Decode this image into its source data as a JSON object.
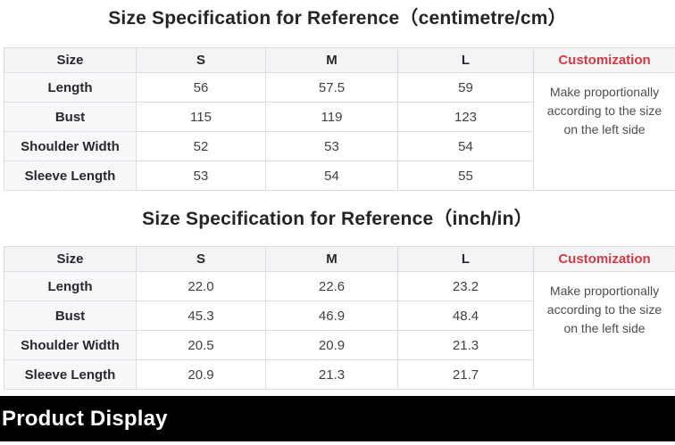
{
  "colors": {
    "customization_red": "#d23b41",
    "header_bg": "#f3f4f6",
    "label_column_bg": "#f7f8f9",
    "table_border": "#dcdde0",
    "section_bar_bg": "#000000",
    "section_bar_text": "#ffffff"
  },
  "tables": [
    {
      "title": "Size Specification for Reference（centimetre/cm）",
      "unit": "centimetre/cm",
      "columns": [
        "Size",
        "S",
        "M",
        "L",
        "Customization"
      ],
      "rows": [
        {
          "label": "Length",
          "values": [
            "56",
            "57.5",
            "59"
          ]
        },
        {
          "label": "Bust",
          "values": [
            "115",
            "119",
            "123"
          ]
        },
        {
          "label": "Shoulder Width",
          "values": [
            "52",
            "53",
            "54"
          ]
        },
        {
          "label": "Sleeve Length",
          "values": [
            "53",
            "54",
            "55"
          ]
        }
      ],
      "customization_note": "Make proportionally according to the size on the left side"
    },
    {
      "title": "Size Specification for Reference（inch/in）",
      "unit": "inch/in",
      "columns": [
        "Size",
        "S",
        "M",
        "L",
        "Customization"
      ],
      "rows": [
        {
          "label": "Length",
          "values": [
            "22.0",
            "22.6",
            "23.2"
          ]
        },
        {
          "label": "Bust",
          "values": [
            "45.3",
            "46.9",
            "48.4"
          ]
        },
        {
          "label": "Shoulder Width",
          "values": [
            "20.5",
            "20.9",
            "21.3"
          ]
        },
        {
          "label": "Sleeve Length",
          "values": [
            "20.9",
            "21.3",
            "21.7"
          ]
        }
      ],
      "customization_note": "Make proportionally according to the size on the left side"
    }
  ],
  "section_header": {
    "label": "Product Display"
  }
}
